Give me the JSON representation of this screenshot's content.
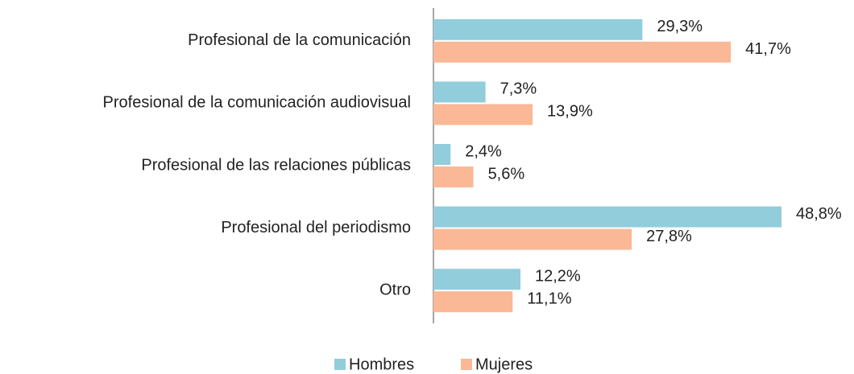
{
  "chart_data": {
    "type": "hbar",
    "categories": [
      "Profesional de la comunicación",
      "Profesional de la comunicación audiovisual",
      "Profesional de las relaciones públicas",
      "Profesional del periodismo",
      "Otro"
    ],
    "series": [
      {
        "name": "Hombres",
        "color": "#92cddc",
        "values": [
          29.3,
          7.3,
          2.4,
          48.8,
          12.2
        ],
        "value_labels": [
          "29,3%",
          "7,3%",
          "2,4%",
          "48,8%",
          "12,2%"
        ]
      },
      {
        "name": "Mujeres",
        "color": "#fab896",
        "values": [
          41.7,
          13.9,
          5.6,
          27.8,
          11.1
        ],
        "value_labels": [
          "41,7%",
          "13,9%",
          "5,6%",
          "27,8%",
          "11,1%"
        ]
      }
    ],
    "legend": "bottom"
  }
}
